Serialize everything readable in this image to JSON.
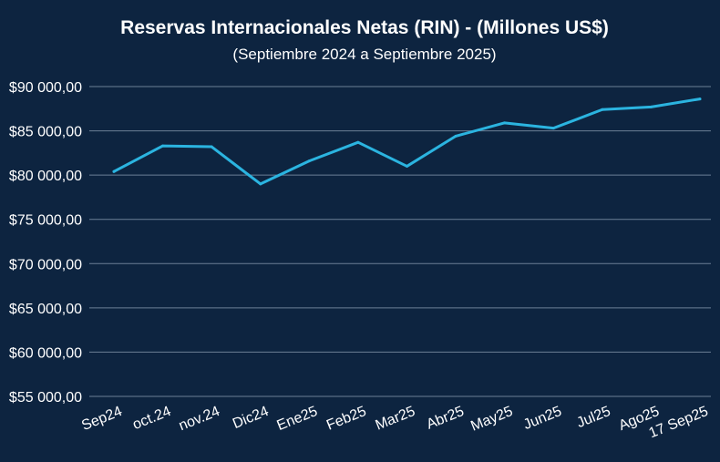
{
  "chart_data": {
    "type": "line",
    "title": "Reservas Internacionales Netas (RIN) - (Millones US$)",
    "subtitle": "(Septiembre 2024 a Septiembre 2025)",
    "xlabel": "",
    "ylabel": "",
    "categories": [
      "Sep24",
      "oct.24",
      "nov.24",
      "Dic24",
      "Ene25",
      "Feb25",
      "Mar25",
      "Abr25",
      "May25",
      "Jun25",
      "Jul25",
      "Ago25",
      "17 Sep25"
    ],
    "series": [
      {
        "name": "RIN",
        "color": "#2bb4e0",
        "values": [
          80400,
          83300,
          83200,
          79000,
          81600,
          83700,
          81000,
          84400,
          85900,
          85300,
          87400,
          87700,
          88600
        ]
      }
    ],
    "ylim": [
      55000,
      90000
    ],
    "yticks": [
      55000,
      60000,
      65000,
      70000,
      75000,
      80000,
      85000,
      90000
    ],
    "ytick_labels": [
      "$55 000,00",
      "$60 000,00",
      "$65 000,00",
      "$70 000,00",
      "$75 000,00",
      "$80 000,00",
      "$85 000,00",
      "$90 000,00"
    ],
    "grid": true,
    "legend": "none"
  }
}
